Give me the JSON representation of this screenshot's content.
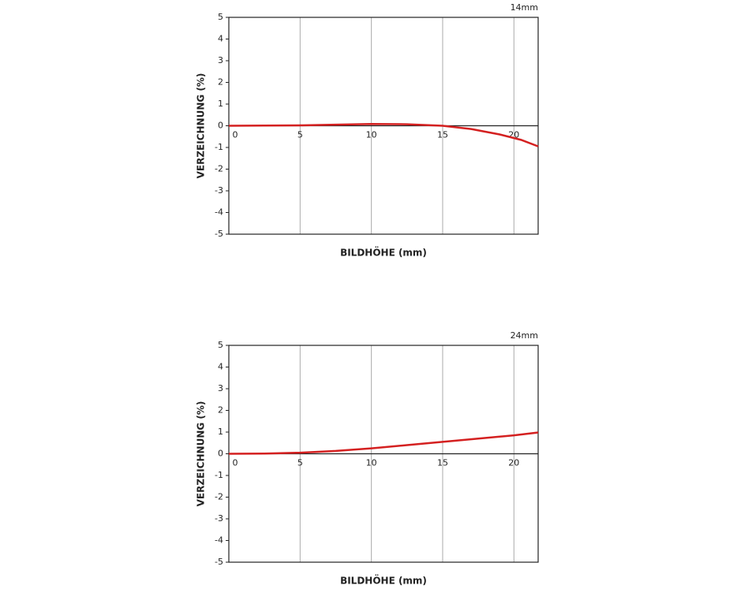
{
  "chart_data": [
    {
      "type": "line",
      "annotation": "14mm",
      "xlabel": "BILDHÖHE (mm)",
      "ylabel": "VERZEICHNUNG (%)",
      "x": [
        0,
        2.5,
        5,
        7.5,
        10,
        12.5,
        15,
        17,
        19,
        20.5,
        21.7
      ],
      "values": [
        0,
        0.01,
        0.02,
        0.05,
        0.08,
        0.07,
        0,
        -0.15,
        -0.4,
        -0.65,
        -0.95
      ],
      "color": "#d42020",
      "xlim": [
        0,
        21.7
      ],
      "ylim": [
        -5,
        5
      ],
      "xticks": [
        0,
        5,
        10,
        15,
        20
      ],
      "yticks": [
        -5,
        -4,
        -3,
        -2,
        -1,
        0,
        1,
        2,
        3,
        4,
        5
      ]
    },
    {
      "type": "line",
      "annotation": "24mm",
      "xlabel": "BILDHÖHE (mm)",
      "ylabel": "VERZEICHNUNG (%)",
      "x": [
        0,
        2.5,
        5,
        7.5,
        10,
        12.5,
        15,
        17.5,
        20,
        21.7
      ],
      "values": [
        0,
        0.01,
        0.05,
        0.13,
        0.25,
        0.4,
        0.55,
        0.7,
        0.85,
        0.98
      ],
      "color": "#d42020",
      "xlim": [
        0,
        21.7
      ],
      "ylim": [
        -5,
        5
      ],
      "xticks": [
        0,
        5,
        10,
        15,
        20
      ],
      "yticks": [
        -5,
        -4,
        -3,
        -2,
        -1,
        0,
        1,
        2,
        3,
        4,
        5
      ]
    }
  ]
}
